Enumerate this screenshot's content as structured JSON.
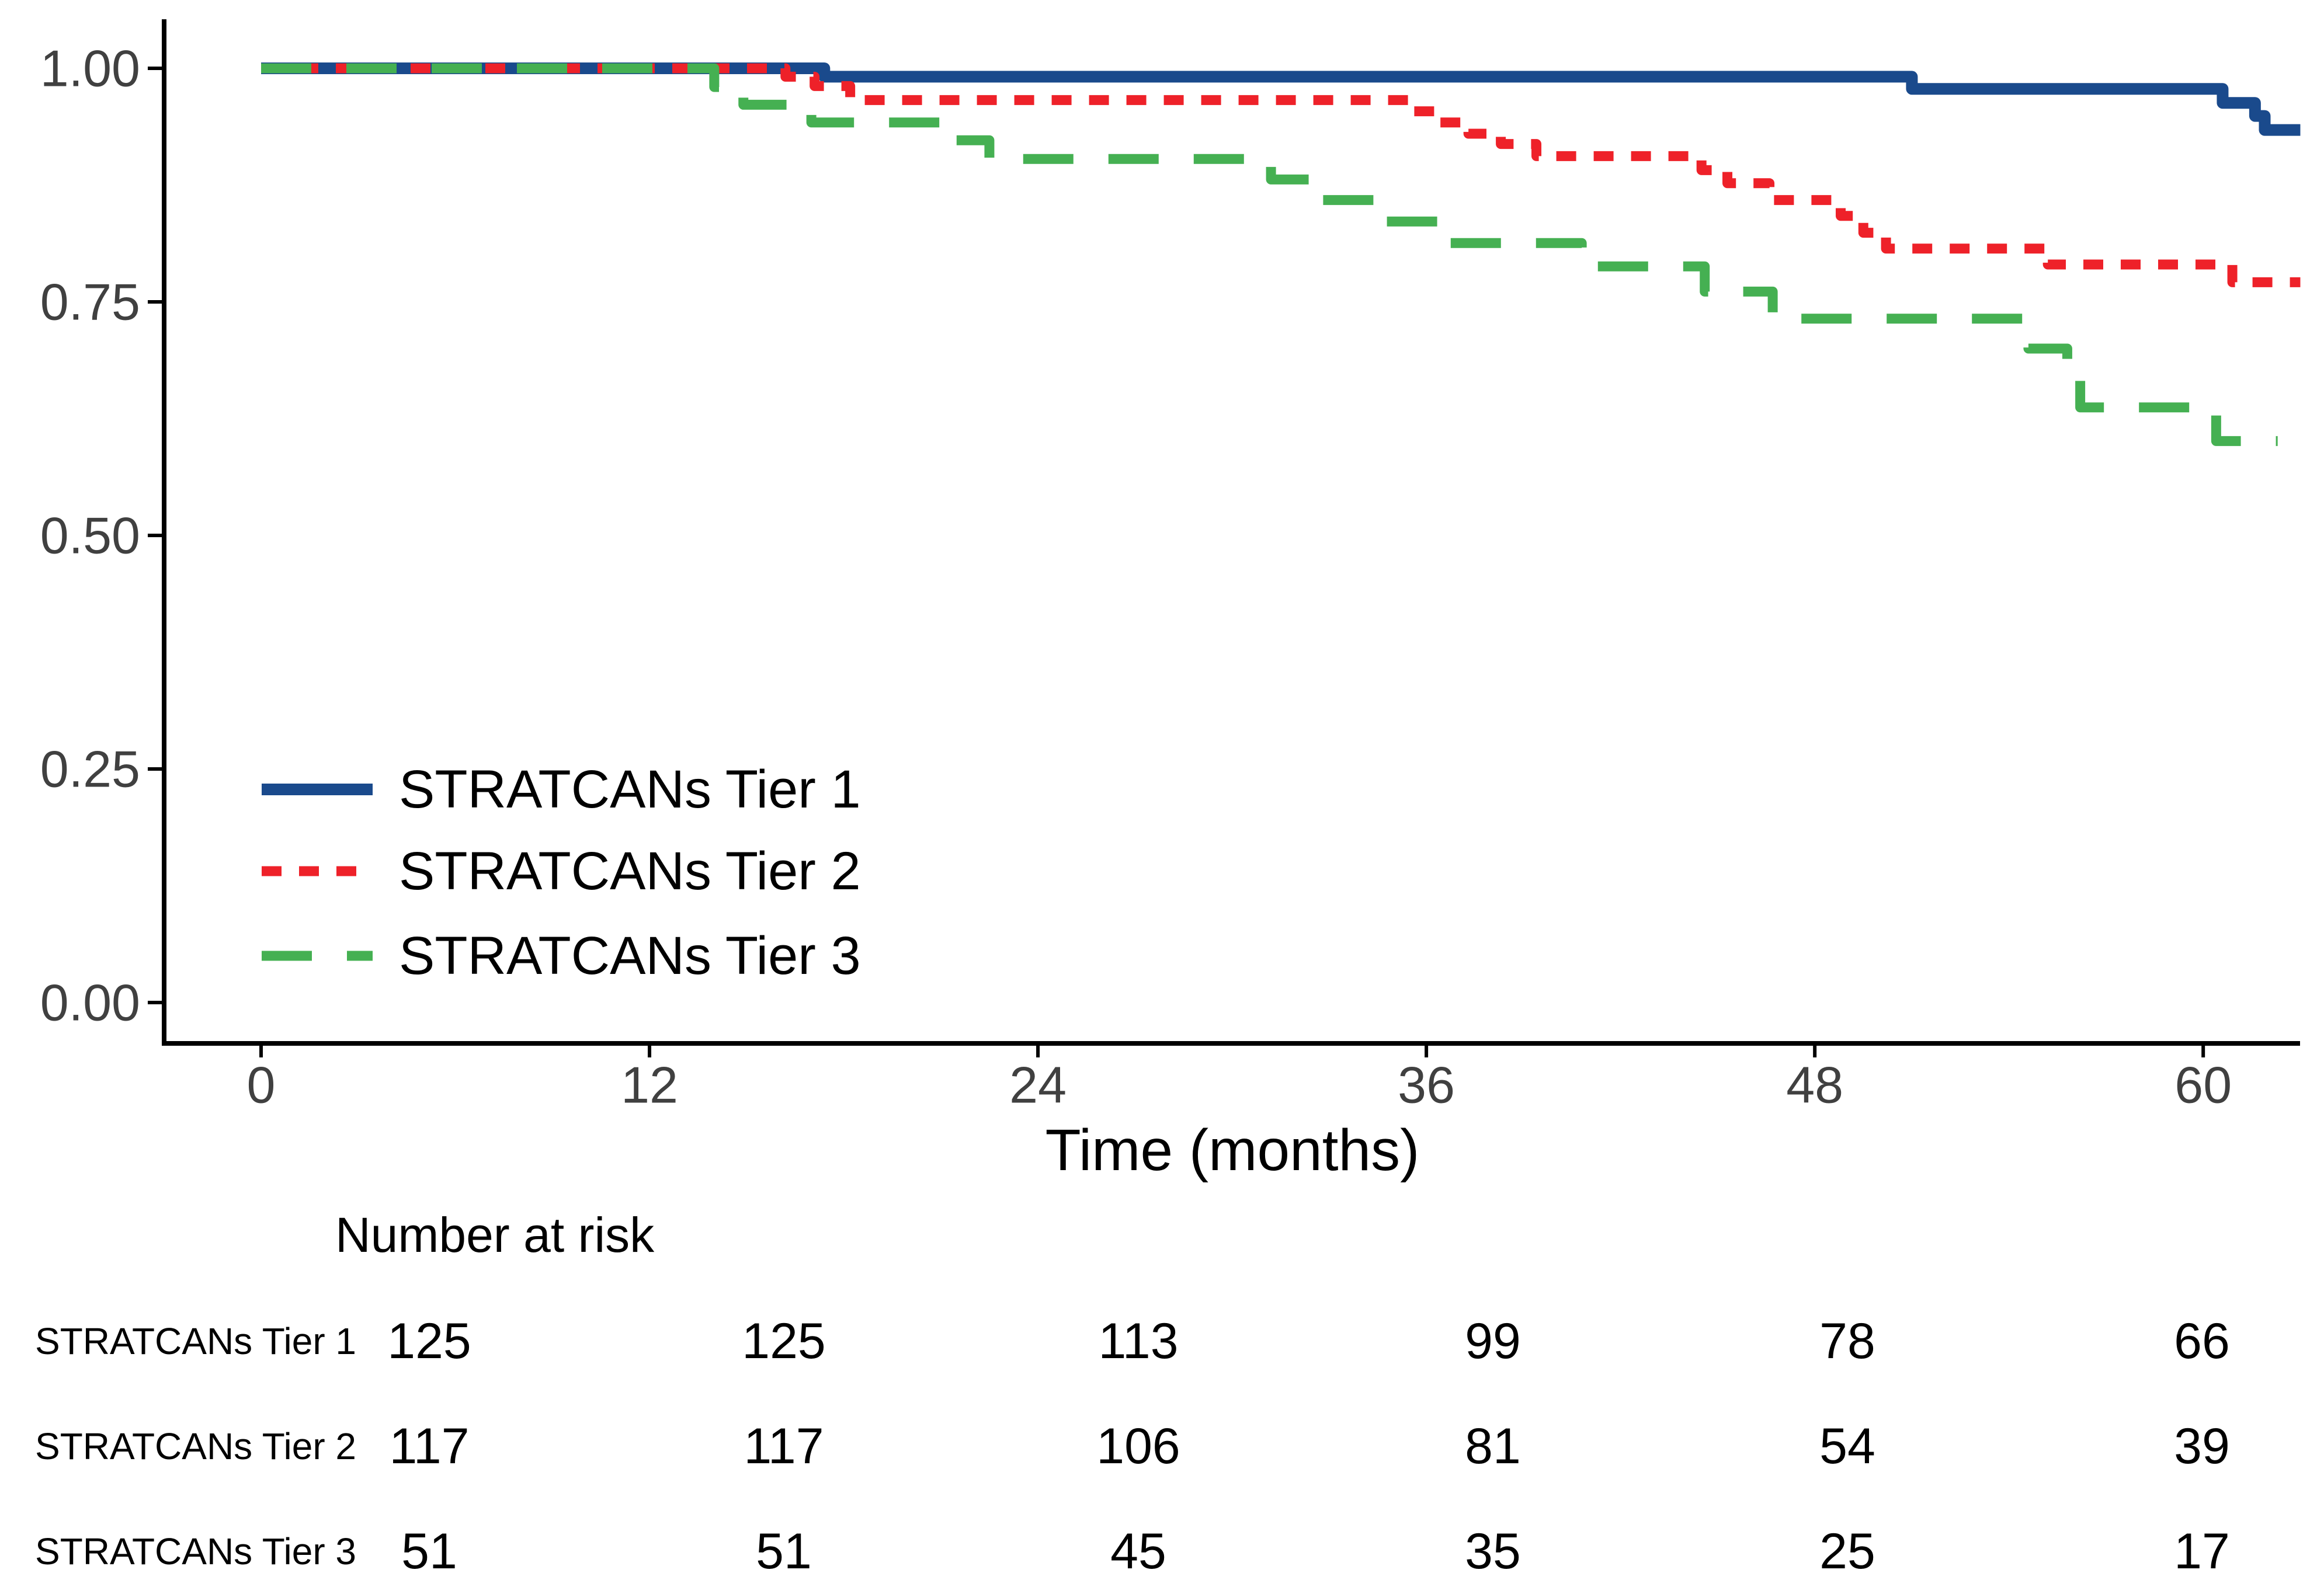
{
  "chart_data": {
    "type": "line",
    "subtype": "kaplan-meier-step-curves",
    "title": "",
    "xlabel": "Time (months)",
    "ylabel": "",
    "xlim": [
      0,
      63
    ],
    "ylim": [
      0.0,
      1.0
    ],
    "grid": "off",
    "x_ticks": [
      0,
      12,
      24,
      36,
      48,
      60
    ],
    "y_ticks": [
      {
        "value": 1.0,
        "label": "1.00"
      },
      {
        "value": 0.75,
        "label": "0.75"
      },
      {
        "value": 0.5,
        "label": "0.50"
      },
      {
        "value": 0.25,
        "label": "0.25"
      },
      {
        "value": 0.0,
        "label": "0.00"
      }
    ],
    "legend_position": "inside-bottom-left",
    "series": [
      {
        "name": "STRATCANs Tier 1",
        "color": "#1a4a8c",
        "dash": "solid",
        "start": [
          0,
          1.0
        ],
        "steps": [
          [
            17.4,
            0.991
          ],
          [
            51.0,
            0.978
          ],
          [
            60.6,
            0.963
          ],
          [
            61.6,
            0.949
          ],
          [
            61.9,
            0.934
          ]
        ],
        "end_month": 63.0
      },
      {
        "name": "STRATCANs Tier 2",
        "color": "#ee2129",
        "dash": "dotted",
        "start": [
          0,
          1.0
        ],
        "steps": [
          [
            16.2,
            0.991
          ],
          [
            17.1,
            0.981
          ],
          [
            18.2,
            0.966
          ],
          [
            35.5,
            0.954
          ],
          [
            36.4,
            0.942
          ],
          [
            37.3,
            0.93
          ],
          [
            38.3,
            0.919
          ],
          [
            39.4,
            0.906
          ],
          [
            44.5,
            0.891
          ],
          [
            45.3,
            0.877
          ],
          [
            46.6,
            0.859
          ],
          [
            48.8,
            0.842
          ],
          [
            49.5,
            0.824
          ],
          [
            50.2,
            0.807
          ],
          [
            55.2,
            0.79
          ],
          [
            60.9,
            0.771
          ]
        ],
        "end_month": 63.0
      },
      {
        "name": "STRATCANs Tier 3",
        "color": "#45b052",
        "dash": "dashed",
        "start": [
          0,
          1.0
        ],
        "steps": [
          [
            14.0,
            0.98
          ],
          [
            14.9,
            0.961
          ],
          [
            17.0,
            0.942
          ],
          [
            21.2,
            0.923
          ],
          [
            22.5,
            0.903
          ],
          [
            31.2,
            0.881
          ],
          [
            32.8,
            0.859
          ],
          [
            34.5,
            0.836
          ],
          [
            36.5,
            0.813
          ],
          [
            40.8,
            0.788
          ],
          [
            44.6,
            0.761
          ],
          [
            46.7,
            0.732
          ],
          [
            54.6,
            0.7
          ],
          [
            55.8,
            0.668
          ],
          [
            56.2,
            0.637
          ],
          [
            60.4,
            0.601
          ]
        ],
        "end_month": 62.3
      }
    ]
  },
  "risk_table": {
    "title": "Number at risk",
    "time_points": [
      0,
      12,
      24,
      36,
      48,
      60
    ],
    "rows": [
      {
        "label": "STRATCANs Tier 1",
        "counts": [
          "125",
          "125",
          "113",
          "99",
          "78",
          "66"
        ]
      },
      {
        "label": "STRATCANs Tier 2",
        "counts": [
          "117",
          "117",
          "106",
          "81",
          "54",
          "39"
        ]
      },
      {
        "label": "STRATCANs Tier 3",
        "counts": [
          "51",
          "51",
          "45",
          "35",
          "25",
          "17"
        ]
      }
    ]
  }
}
